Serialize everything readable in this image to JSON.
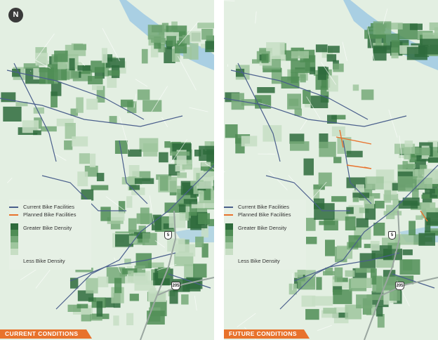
{
  "north_arrow": {
    "label": "N"
  },
  "legend": {
    "current_label": "Current Bike Facilities",
    "planned_label": "Planned Bike Facilities",
    "greater_label": "Greater Bike Density",
    "less_label": "Less Bike Density"
  },
  "colors": {
    "current_line": "#4a5f8c",
    "planned_line": "#e8722c",
    "background": "#e3efe2",
    "banner": "#e8722c",
    "river": "#a9cfe3",
    "density_ramp": [
      "#2e6b3c",
      "#4f8d55",
      "#75a978",
      "#9fc69e",
      "#c7dec4"
    ]
  },
  "panels": [
    {
      "id": "current",
      "banner": "CURRENT CONDITIONS"
    },
    {
      "id": "future",
      "banner": "FUTURE CONDITIONS"
    }
  ],
  "highway_shields": {
    "i5": "5",
    "i205": "205"
  }
}
